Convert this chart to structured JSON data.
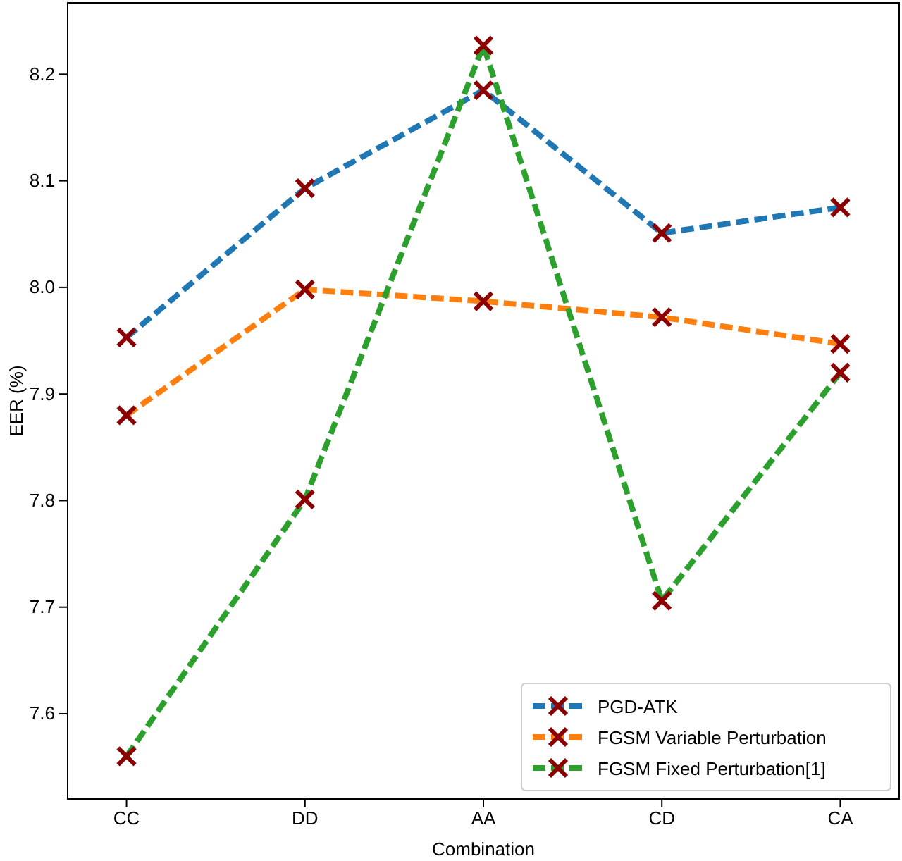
{
  "chart_data": {
    "type": "line",
    "xlabel": "Combination",
    "ylabel": "EER (%)",
    "categories": [
      "CC",
      "DD",
      "AA",
      "CD",
      "CA"
    ],
    "series": [
      {
        "name": "PGD-ATK",
        "color": "#1f77b4",
        "values": [
          7.953,
          8.093,
          8.185,
          8.051,
          8.075
        ]
      },
      {
        "name": "FGSM Variable Perturbation",
        "color": "#ff7f0e",
        "values": [
          7.88,
          7.998,
          7.987,
          7.972,
          7.947
        ]
      },
      {
        "name": "FGSM Fixed Perturbation[1]",
        "color": "#2ca02c",
        "values": [
          7.56,
          7.801,
          8.227,
          7.706,
          7.92
        ]
      }
    ],
    "ylim": [
      7.52,
      8.267
    ],
    "yticks": [
      7.6,
      7.7,
      7.8,
      7.9,
      {
        "value": 8.0,
        "label": "8.0"
      },
      8.1,
      8.2
    ],
    "grid": false,
    "legend": "bottom right",
    "marker": "cross",
    "line_style": "dashed"
  }
}
